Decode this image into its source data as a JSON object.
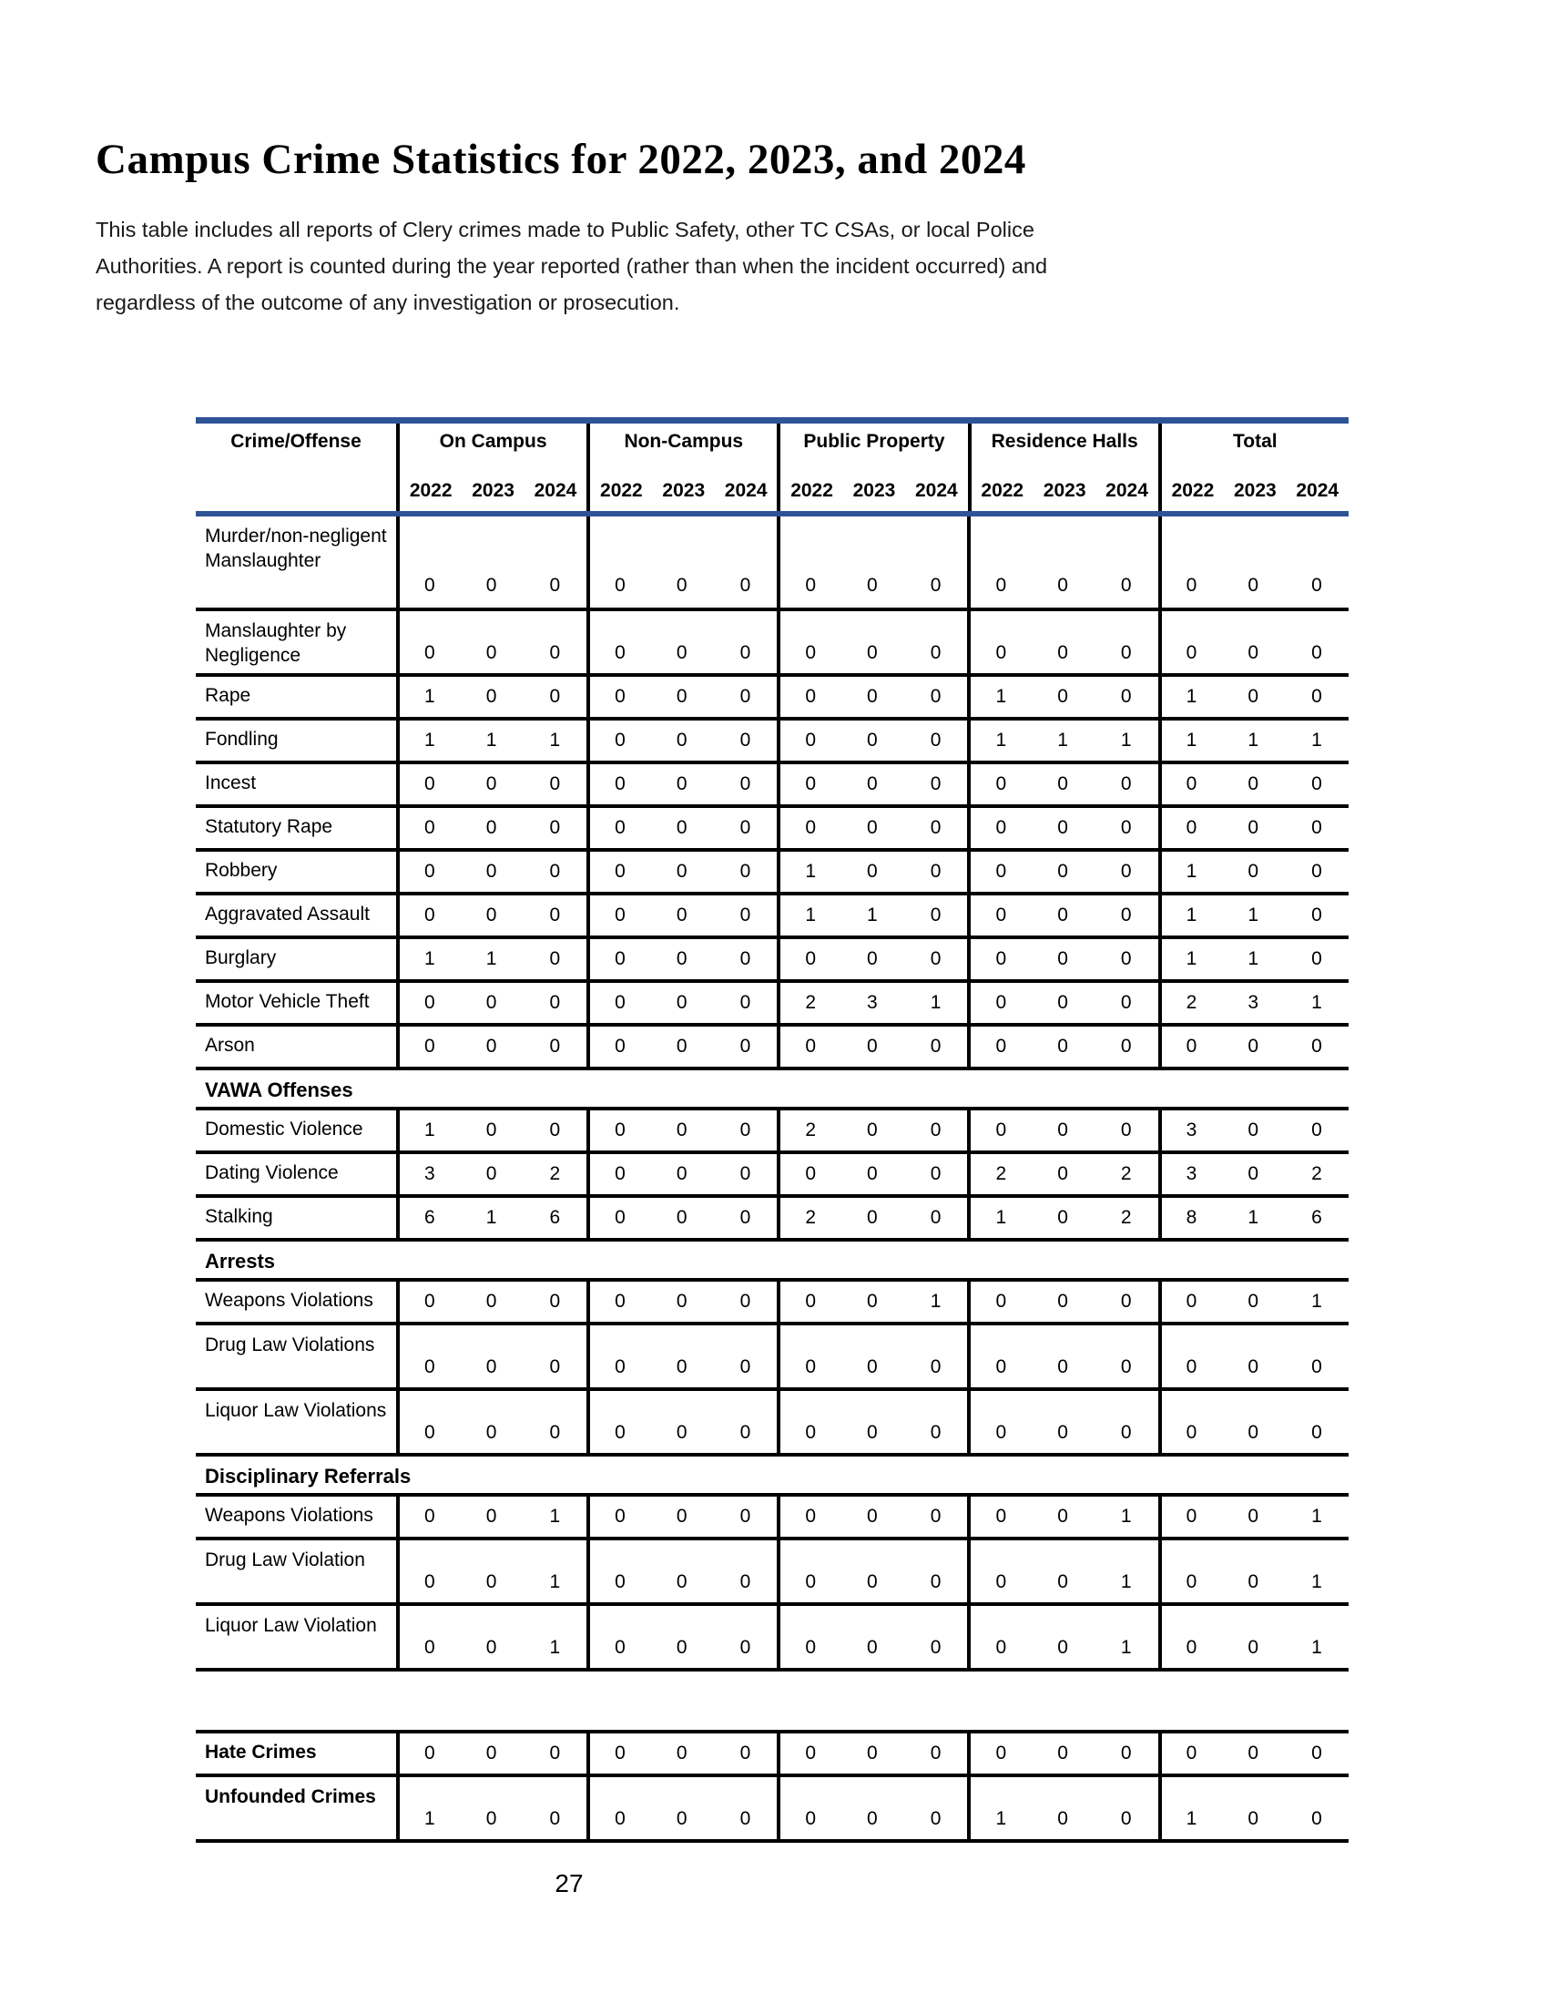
{
  "page": {
    "title": "Campus Crime Statistics for 2022, 2023, and 2024",
    "intro": "This table includes all reports of Clery crimes made to Public Safety, other TC CSAs, or local Police Authorities.  A report is counted during the year reported (rather than when the incident occurred) and regardless of the outcome of any investigation or prosecution.",
    "page_number": "27"
  },
  "colors": {
    "accent_blue": "#2F5496",
    "grid_black": "#000000"
  },
  "table": {
    "label_header": "Crime/Offense",
    "groups": [
      "On Campus",
      "Non-Campus",
      "Public Property",
      "Residence Halls",
      "Total"
    ],
    "years": [
      "2022",
      "2023",
      "2024"
    ],
    "rows": [
      {
        "type": "data",
        "size": "tall",
        "label": "Murder/non-negligent Manslaughter",
        "values": [
          "0",
          "0",
          "0",
          "0",
          "0",
          "0",
          "0",
          "0",
          "0",
          "0",
          "0",
          "0",
          "0",
          "0",
          "0"
        ]
      },
      {
        "type": "data",
        "size": "med",
        "label": "Manslaughter by Negligence",
        "values": [
          "0",
          "0",
          "0",
          "0",
          "0",
          "0",
          "0",
          "0",
          "0",
          "0",
          "0",
          "0",
          "0",
          "0",
          "0"
        ]
      },
      {
        "type": "data",
        "size": "short",
        "label": "Rape",
        "values": [
          "1",
          "0",
          "0",
          "0",
          "0",
          "0",
          "0",
          "0",
          "0",
          "1",
          "0",
          "0",
          "1",
          "0",
          "0"
        ]
      },
      {
        "type": "data",
        "size": "short",
        "label": "Fondling",
        "values": [
          "1",
          "1",
          "1",
          "0",
          "0",
          "0",
          "0",
          "0",
          "0",
          "1",
          "1",
          "1",
          "1",
          "1",
          "1"
        ]
      },
      {
        "type": "data",
        "size": "short",
        "label": "Incest",
        "values": [
          "0",
          "0",
          "0",
          "0",
          "0",
          "0",
          "0",
          "0",
          "0",
          "0",
          "0",
          "0",
          "0",
          "0",
          "0"
        ]
      },
      {
        "type": "data",
        "size": "short",
        "label": "Statutory Rape",
        "values": [
          "0",
          "0",
          "0",
          "0",
          "0",
          "0",
          "0",
          "0",
          "0",
          "0",
          "0",
          "0",
          "0",
          "0",
          "0"
        ]
      },
      {
        "type": "data",
        "size": "short",
        "label": "Robbery",
        "values": [
          "0",
          "0",
          "0",
          "0",
          "0",
          "0",
          "1",
          "0",
          "0",
          "0",
          "0",
          "0",
          "1",
          "0",
          "0"
        ]
      },
      {
        "type": "data",
        "size": "short",
        "label": "Aggravated Assault",
        "values": [
          "0",
          "0",
          "0",
          "0",
          "0",
          "0",
          "1",
          "1",
          "0",
          "0",
          "0",
          "0",
          "1",
          "1",
          "0"
        ]
      },
      {
        "type": "data",
        "size": "short",
        "label": "Burglary",
        "values": [
          "1",
          "1",
          "0",
          "0",
          "0",
          "0",
          "0",
          "0",
          "0",
          "0",
          "0",
          "0",
          "1",
          "1",
          "0"
        ]
      },
      {
        "type": "data",
        "size": "short",
        "label": "Motor Vehicle Theft",
        "values": [
          "0",
          "0",
          "0",
          "0",
          "0",
          "0",
          "2",
          "3",
          "1",
          "0",
          "0",
          "0",
          "2",
          "3",
          "1"
        ]
      },
      {
        "type": "data",
        "size": "short",
        "label": "Arson",
        "values": [
          "0",
          "0",
          "0",
          "0",
          "0",
          "0",
          "0",
          "0",
          "0",
          "0",
          "0",
          "0",
          "0",
          "0",
          "0"
        ]
      },
      {
        "type": "section",
        "label": "VAWA Offenses"
      },
      {
        "type": "data",
        "size": "short",
        "label": "Domestic Violence",
        "values": [
          "1",
          "0",
          "0",
          "0",
          "0",
          "0",
          "2",
          "0",
          "0",
          "0",
          "0",
          "0",
          "3",
          "0",
          "0"
        ]
      },
      {
        "type": "data",
        "size": "short",
        "label": "Dating Violence",
        "values": [
          "3",
          "0",
          "2",
          "0",
          "0",
          "0",
          "0",
          "0",
          "0",
          "2",
          "0",
          "2",
          "3",
          "0",
          "2"
        ]
      },
      {
        "type": "data",
        "size": "short",
        "label": "Stalking",
        "values": [
          "6",
          "1",
          "6",
          "0",
          "0",
          "0",
          "2",
          "0",
          "0",
          "1",
          "0",
          "2",
          "8",
          "1",
          "6"
        ]
      },
      {
        "type": "section",
        "label": "Arrests"
      },
      {
        "type": "data",
        "size": "short",
        "label": "Weapons Violations",
        "values": [
          "0",
          "0",
          "0",
          "0",
          "0",
          "0",
          "0",
          "0",
          "1",
          "0",
          "0",
          "0",
          "0",
          "0",
          "1"
        ]
      },
      {
        "type": "data",
        "size": "med",
        "label": "Drug Law Violations",
        "values": [
          "0",
          "0",
          "0",
          "0",
          "0",
          "0",
          "0",
          "0",
          "0",
          "0",
          "0",
          "0",
          "0",
          "0",
          "0"
        ]
      },
      {
        "type": "data",
        "size": "med",
        "label": "Liquor Law Violations",
        "values": [
          "0",
          "0",
          "0",
          "0",
          "0",
          "0",
          "0",
          "0",
          "0",
          "0",
          "0",
          "0",
          "0",
          "0",
          "0"
        ]
      },
      {
        "type": "section",
        "label": "Disciplinary Referrals"
      },
      {
        "type": "data",
        "size": "short",
        "label": "Weapons Violations",
        "values": [
          "0",
          "0",
          "1",
          "0",
          "0",
          "0",
          "0",
          "0",
          "0",
          "0",
          "0",
          "1",
          "0",
          "0",
          "1"
        ]
      },
      {
        "type": "data",
        "size": "med",
        "label": "Drug Law Violation",
        "values": [
          "0",
          "0",
          "1",
          "0",
          "0",
          "0",
          "0",
          "0",
          "0",
          "0",
          "0",
          "1",
          "0",
          "0",
          "1"
        ]
      },
      {
        "type": "data",
        "size": "med",
        "label": "Liquor Law Violation",
        "values": [
          "0",
          "0",
          "1",
          "0",
          "0",
          "0",
          "0",
          "0",
          "0",
          "0",
          "0",
          "1",
          "0",
          "0",
          "1"
        ]
      },
      {
        "type": "spacer"
      },
      {
        "type": "data",
        "size": "short",
        "bold": true,
        "label": "Hate Crimes",
        "values": [
          "0",
          "0",
          "0",
          "0",
          "0",
          "0",
          "0",
          "0",
          "0",
          "0",
          "0",
          "0",
          "0",
          "0",
          "0"
        ]
      },
      {
        "type": "data",
        "size": "med",
        "bold": true,
        "label": "Unfounded  Crimes",
        "values": [
          "1",
          "0",
          "0",
          "0",
          "0",
          "0",
          "0",
          "0",
          "0",
          "1",
          "0",
          "0",
          "1",
          "0",
          "0"
        ]
      }
    ]
  }
}
